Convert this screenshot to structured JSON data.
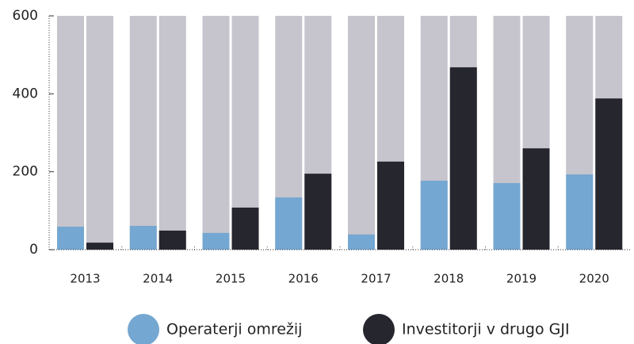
{
  "chart_data": {
    "type": "bar",
    "categories": [
      "2013",
      "2014",
      "2015",
      "2016",
      "2017",
      "2018",
      "2019",
      "2020"
    ],
    "series": [
      {
        "name": "Operaterji omrežij",
        "color": "#74a7d1",
        "values": [
          59,
          61,
          43,
          134,
          39,
          177,
          171,
          193
        ]
      },
      {
        "name": "Investitorji v drugo GJI",
        "color": "#25262e",
        "values": [
          18,
          49,
          108,
          195,
          226,
          468,
          260,
          388
        ]
      }
    ],
    "ylim": [
      0,
      600
    ],
    "yticks": [
      0,
      200,
      400,
      600
    ],
    "track_color": "#c6c4cc"
  }
}
